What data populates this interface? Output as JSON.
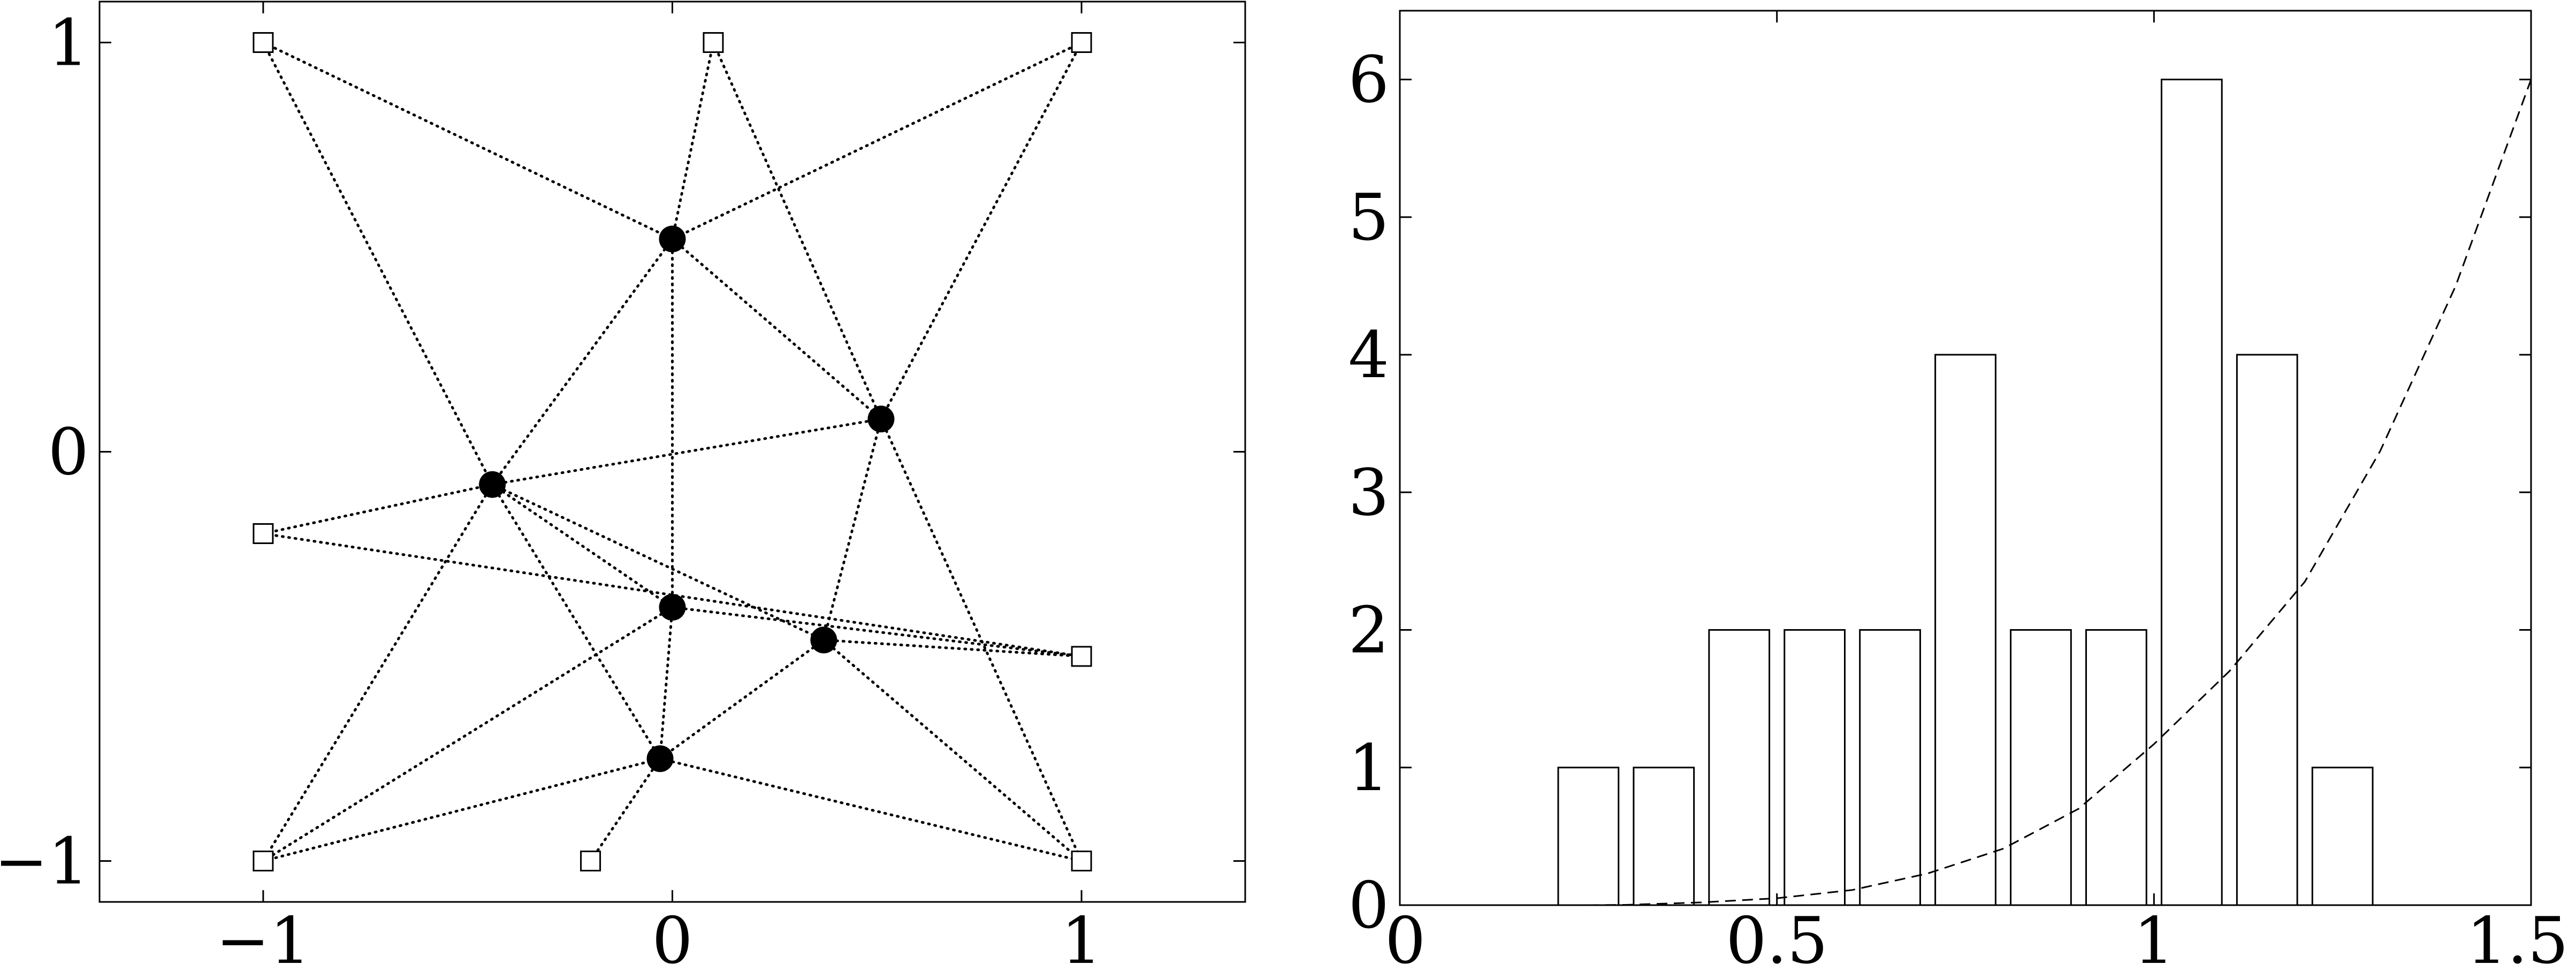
{
  "chart_data": [
    {
      "type": "network",
      "title": "",
      "xlabel": "",
      "ylabel": "",
      "xlim": [
        -1.4,
        1.4
      ],
      "ylim": [
        -1.1,
        1.1
      ],
      "xticks": [
        -1,
        0,
        1
      ],
      "yticks": [
        -1,
        0,
        1
      ],
      "xtick_labels": [
        "−1",
        "0",
        "1"
      ],
      "ytick_labels": [
        "−1",
        "0",
        "1"
      ],
      "grid": false,
      "anchors": [
        {
          "x": -1.0,
          "y": 1.0
        },
        {
          "x": 0.1,
          "y": 1.0
        },
        {
          "x": 1.0,
          "y": 1.0
        },
        {
          "x": -1.0,
          "y": -0.2
        },
        {
          "x": 1.0,
          "y": -0.5
        },
        {
          "x": -1.0,
          "y": -1.0
        },
        {
          "x": -0.2,
          "y": -1.0
        },
        {
          "x": 1.0,
          "y": -1.0
        }
      ],
      "nodes": [
        {
          "x": 0.0,
          "y": 0.52
        },
        {
          "x": 0.51,
          "y": 0.08
        },
        {
          "x": -0.44,
          "y": -0.08
        },
        {
          "x": 0.0,
          "y": -0.38
        },
        {
          "x": 0.37,
          "y": -0.46
        },
        {
          "x": -0.03,
          "y": -0.75
        }
      ],
      "edges": [
        {
          "from": "a0",
          "to": "n0"
        },
        {
          "from": "a2",
          "to": "n0"
        },
        {
          "from": "n0",
          "to": "n2"
        },
        {
          "from": "n0",
          "to": "n3"
        },
        {
          "from": "n0",
          "to": "n1"
        },
        {
          "from": "a1",
          "to": "n0"
        },
        {
          "from": "a1",
          "to": "n1"
        },
        {
          "from": "a2",
          "to": "n1"
        },
        {
          "from": "a0",
          "to": "n2"
        },
        {
          "from": "n2",
          "to": "n1"
        },
        {
          "from": "n1",
          "to": "a7"
        },
        {
          "from": "n1",
          "to": "n4"
        },
        {
          "from": "a3",
          "to": "n2"
        },
        {
          "from": "a3",
          "to": "a4"
        },
        {
          "from": "n2",
          "to": "n4"
        },
        {
          "from": "n2",
          "to": "n3"
        },
        {
          "from": "n2",
          "to": "n5"
        },
        {
          "from": "n2",
          "to": "a5"
        },
        {
          "from": "n3",
          "to": "n5"
        },
        {
          "from": "n3",
          "to": "a4"
        },
        {
          "from": "n3",
          "to": "a5"
        },
        {
          "from": "n4",
          "to": "a4"
        },
        {
          "from": "n4",
          "to": "a7"
        },
        {
          "from": "n4",
          "to": "n5"
        },
        {
          "from": "a5",
          "to": "n5"
        },
        {
          "from": "a6",
          "to": "n5"
        },
        {
          "from": "n5",
          "to": "a7"
        }
      ]
    },
    {
      "type": "bar",
      "title": "",
      "xlabel": "",
      "ylabel": "",
      "xlim": [
        0,
        1.5
      ],
      "ylim": [
        0,
        6.5
      ],
      "xticks": [
        0,
        0.5,
        1,
        1.5
      ],
      "yticks": [
        0,
        1,
        2,
        3,
        4,
        5,
        6
      ],
      "xtick_labels": [
        "0",
        "0.5",
        "1",
        "1.5"
      ],
      "ytick_labels": [
        "0",
        "1",
        "2",
        "3",
        "4",
        "5",
        "6"
      ],
      "grid": false,
      "bar_width": 0.08,
      "bins": [
        0.25,
        0.35,
        0.45,
        0.55,
        0.65,
        0.75,
        0.85,
        0.95,
        1.05,
        1.15,
        1.25
      ],
      "values": [
        1,
        1,
        2,
        2,
        2,
        4,
        2,
        2,
        6,
        4,
        1
      ],
      "curve": {
        "style": "dashed",
        "x": [
          0.0,
          0.25,
          0.3,
          0.4,
          0.5,
          0.6,
          0.7,
          0.8,
          0.9,
          1.0,
          1.1,
          1.2,
          1.3,
          1.4,
          1.5
        ],
        "y": [
          0.0,
          0.0,
          0.002,
          0.02,
          0.05,
          0.11,
          0.23,
          0.41,
          0.7,
          1.17,
          1.7,
          2.35,
          3.3,
          4.5,
          6.0
        ]
      }
    }
  ]
}
